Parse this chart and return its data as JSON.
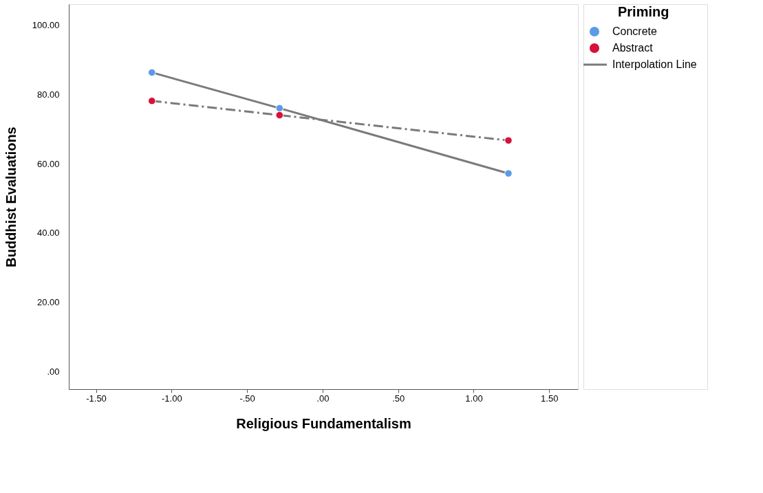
{
  "chart_data": {
    "type": "scatter",
    "xlabel": "Religious Fundamentalism",
    "ylabel": "Buddhist Evaluations",
    "legend_title": "Priming",
    "legend": "top right",
    "grid": false,
    "xlim": [
      -1.68,
      1.69
    ],
    "ylim": [
      -5,
      106
    ],
    "xticks": [
      {
        "value": -1.5,
        "label": "-1.50"
      },
      {
        "value": -1.0,
        "label": "-1.00"
      },
      {
        "value": -0.5,
        "label": "-.50"
      },
      {
        "value": 0,
        "label": ".00"
      },
      {
        "value": 0.5,
        "label": ".50"
      },
      {
        "value": 1.0,
        "label": "1.00"
      },
      {
        "value": 1.5,
        "label": "1.50"
      }
    ],
    "yticks": [
      {
        "value": 0,
        "label": ".00"
      },
      {
        "value": 20,
        "label": "20.00"
      },
      {
        "value": 40,
        "label": "40.00"
      },
      {
        "value": 60,
        "label": "60.00"
      },
      {
        "value": 80,
        "label": "80.00"
      },
      {
        "value": 100,
        "label": "100.00"
      }
    ],
    "series": [
      {
        "name": "Concrete",
        "marker": "circle",
        "color": "#5b9be6",
        "x": [
          -1.13,
          -0.285,
          1.23
        ],
        "values": [
          86.3,
          76.0,
          57.2
        ]
      },
      {
        "name": "Abstract",
        "marker": "circle",
        "color": "#d8103a",
        "x": [
          -1.13,
          -0.285,
          1.23
        ],
        "values": [
          78.1,
          74.0,
          66.7
        ]
      },
      {
        "name": "Interpolation Line",
        "type": "line",
        "marker": "none",
        "color": "#7a7a7a",
        "line_style": "solid",
        "x": [
          -1.13,
          -0.285,
          1.23
        ],
        "values": [
          86.3,
          76.0,
          57.2
        ]
      },
      {
        "type": "line",
        "marker": "none",
        "color": "#7a7a7a",
        "line_style": "dashed",
        "x": [
          -1.13,
          -0.285,
          1.23
        ],
        "values": [
          78.1,
          74.0,
          66.7
        ]
      }
    ]
  }
}
